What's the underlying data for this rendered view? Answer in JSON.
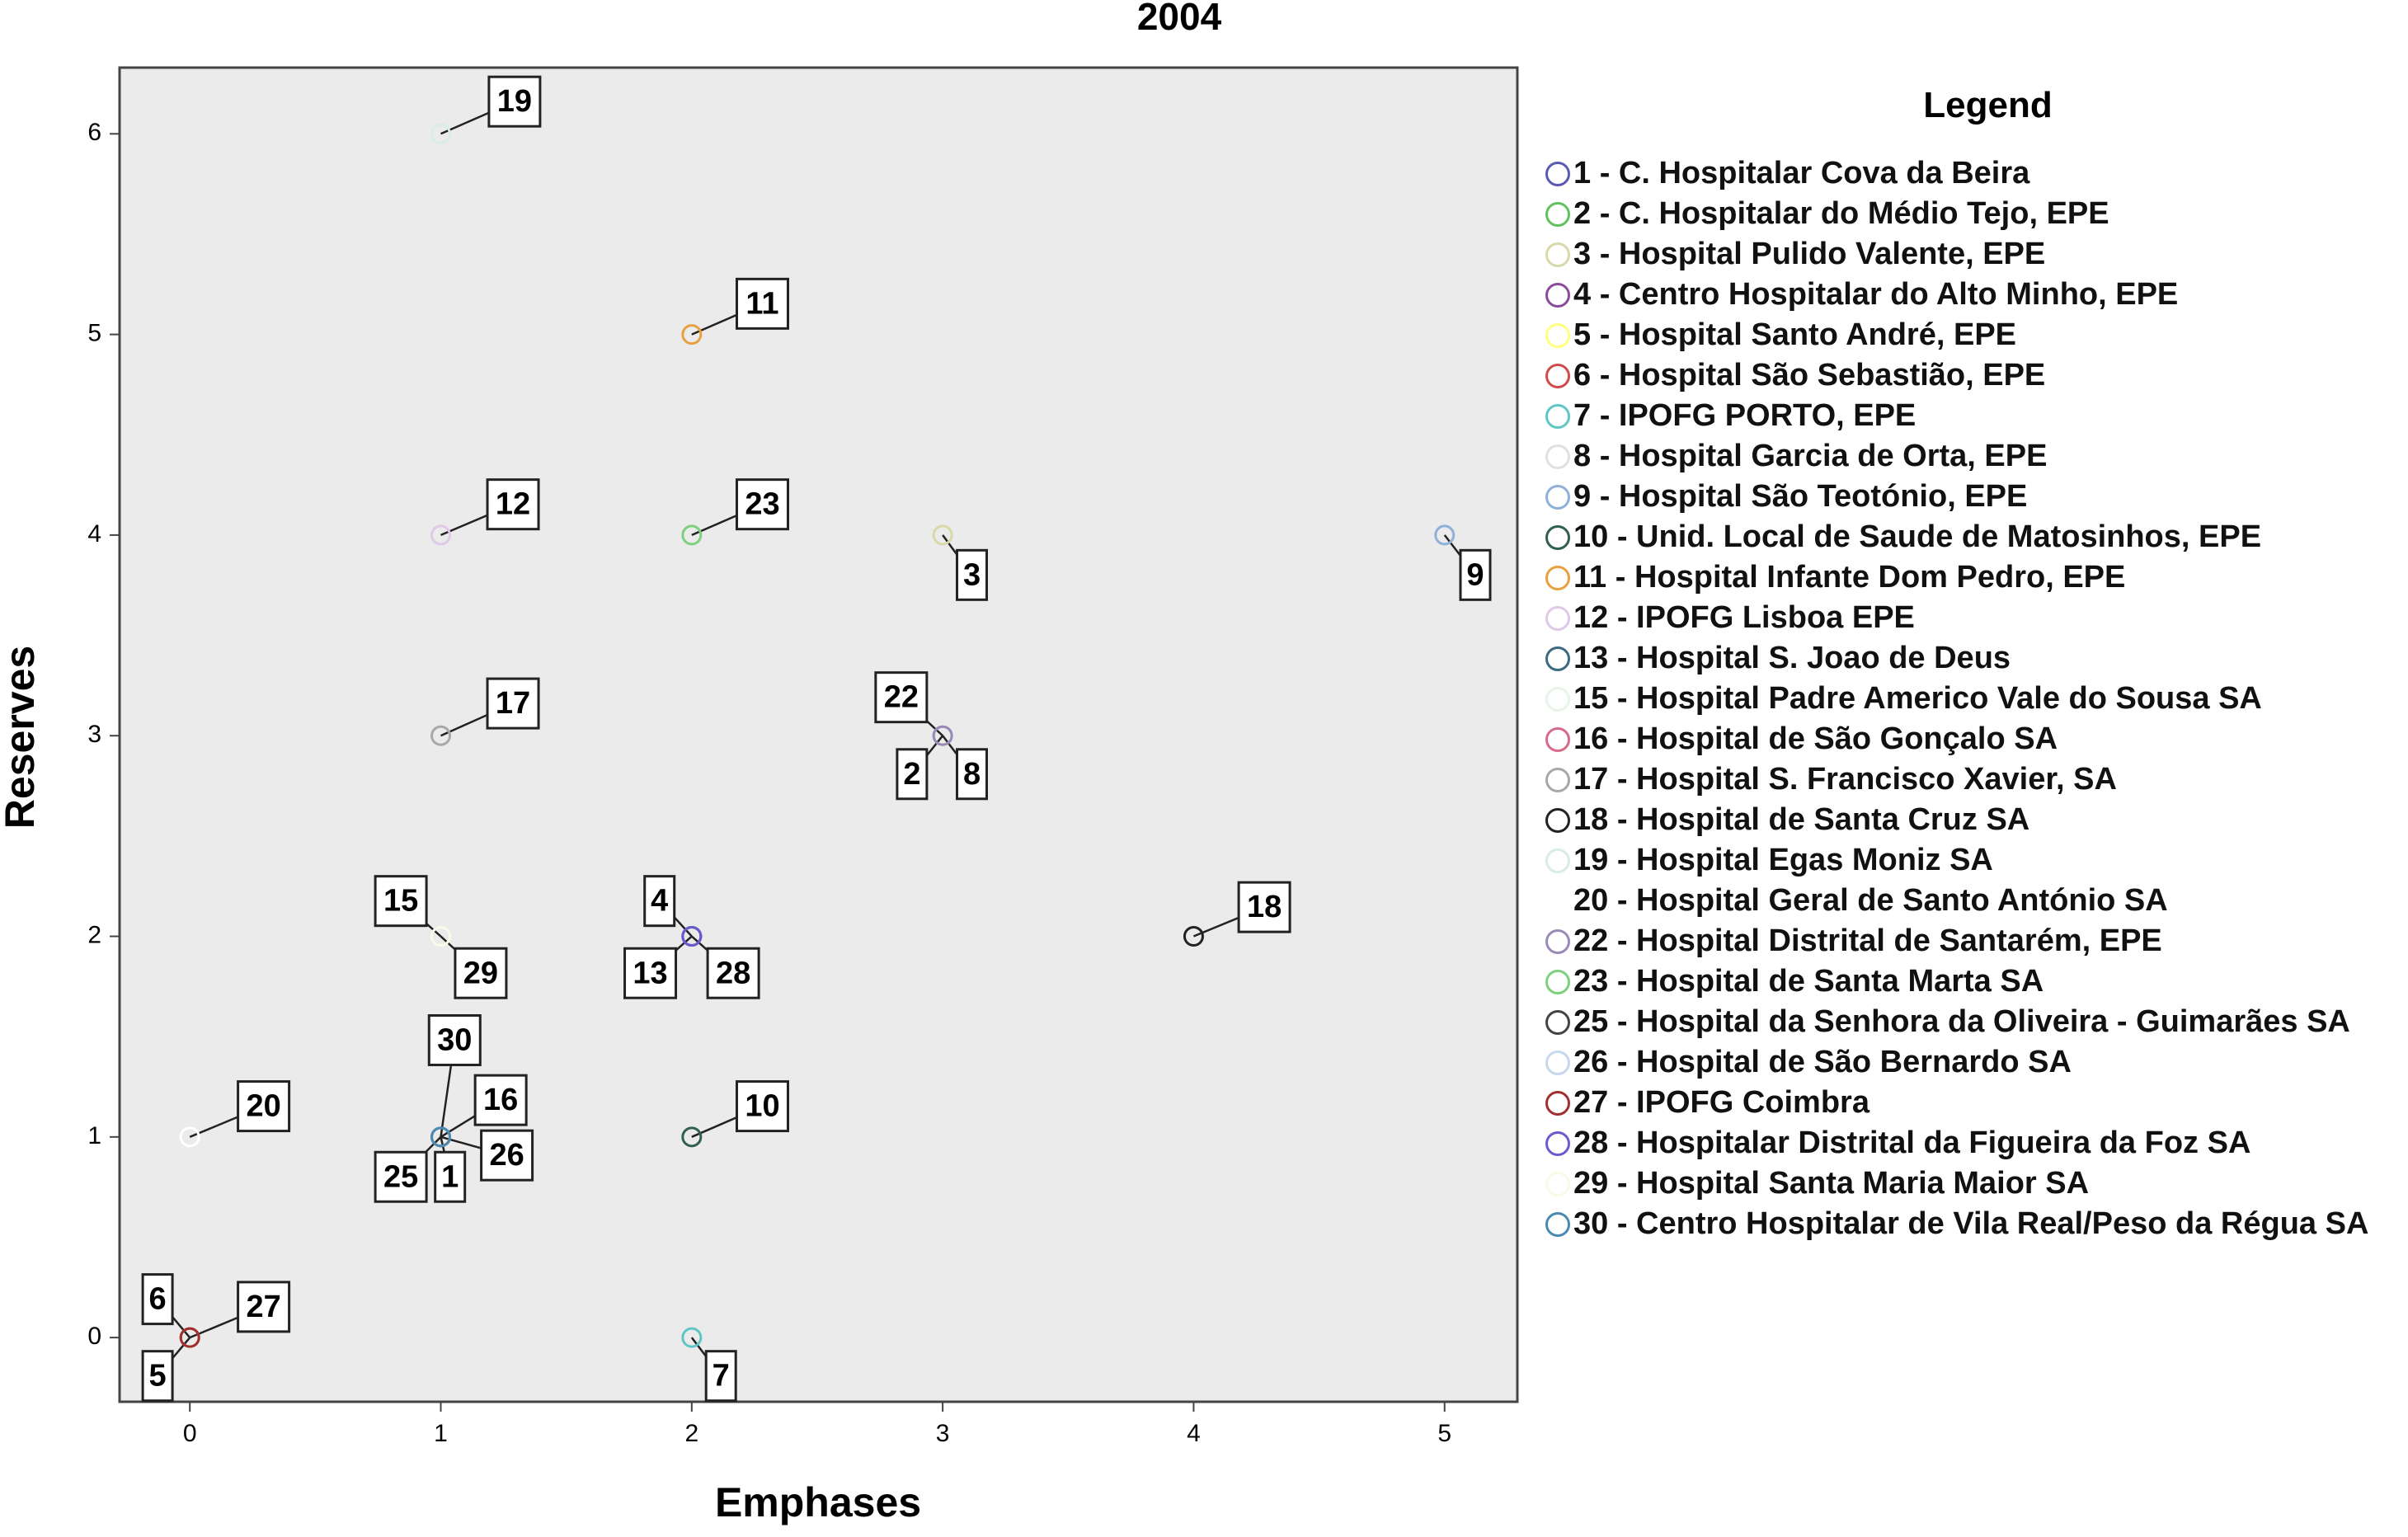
{
  "chart_data": {
    "type": "scatter",
    "title": "2004",
    "x_label": "Emphases",
    "y_label": "Reserves",
    "legend_title": "Legend",
    "xlim": [
      -0.28,
      5.29
    ],
    "ylim": [
      -0.32,
      6.33
    ],
    "xticks": [
      0,
      1,
      2,
      3,
      4,
      5
    ],
    "yticks": [
      0,
      1,
      2,
      3,
      4,
      5,
      6
    ],
    "series": [
      {
        "name": "1 - C. Hospitalar Cova da Beira",
        "label": "1",
        "color": "#5a5ab4",
        "x": [
          1
        ],
        "values": [
          1
        ]
      },
      {
        "name": "2 - C. Hospitalar do Médio Tejo, EPE",
        "label": "2",
        "color": "#5fc15f",
        "x": [
          3
        ],
        "values": [
          3
        ]
      },
      {
        "name": "3 - Hospital Pulido Valente, EPE",
        "label": "3",
        "color": "#d8d8a8",
        "x": [
          3
        ],
        "values": [
          4
        ]
      },
      {
        "name": "4 - Centro Hospitalar do Alto Minho, EPE",
        "label": "4",
        "color": "#8b4b9b",
        "x": [
          2
        ],
        "values": [
          2
        ]
      },
      {
        "name": "5 - Hospital Santo André, EPE",
        "label": "5",
        "color": "#ffff80",
        "x": [
          0
        ],
        "values": [
          0
        ]
      },
      {
        "name": "6 - Hospital São Sebastião, EPE",
        "label": "6",
        "color": "#d24b4b",
        "x": [
          0
        ],
        "values": [
          0
        ]
      },
      {
        "name": "7 - IPOFG PORTO, EPE",
        "label": "7",
        "color": "#5fc6c6",
        "x": [
          2
        ],
        "values": [
          0
        ]
      },
      {
        "name": "8 - Hospital Garcia  de Orta, EPE",
        "label": "8",
        "color": "#e0e0e0",
        "x": [
          3
        ],
        "values": [
          3
        ]
      },
      {
        "name": "9 - Hospital São Teotónio, EPE",
        "label": "9",
        "color": "#8fb0d8",
        "x": [
          5
        ],
        "values": [
          4
        ]
      },
      {
        "name": "10 - Unid. Local de Saude de Matosinhos, EPE",
        "label": "10",
        "color": "#2f5f4f",
        "x": [
          2
        ],
        "values": [
          1
        ]
      },
      {
        "name": "11 - Hospital Infante Dom Pedro, EPE",
        "label": "11",
        "color": "#e8a040",
        "x": [
          2
        ],
        "values": [
          5
        ]
      },
      {
        "name": "12 - IPOFG Lisboa EPE",
        "label": "12",
        "color": "#e0c8e8",
        "x": [
          1
        ],
        "values": [
          4
        ]
      },
      {
        "name": "13 - Hospital S. Joao de Deus",
        "label": "13",
        "color": "#3a6a80",
        "x": [
          2
        ],
        "values": [
          2
        ]
      },
      {
        "name": "15 - Hospital Padre Americo  Vale do Sousa SA",
        "label": "15",
        "color": "#e8f4e8",
        "x": [
          1
        ],
        "values": [
          2
        ]
      },
      {
        "name": "16 - Hospital de São Gonçalo SA",
        "label": "16",
        "color": "#d86a8a",
        "x": [
          1
        ],
        "values": [
          1
        ]
      },
      {
        "name": "17 - Hospital S. Francisco Xavier, SA",
        "label": "17",
        "color": "#a8a8a8",
        "x": [
          1
        ],
        "values": [
          3
        ]
      },
      {
        "name": "18 - Hospital de Santa Cruz SA",
        "label": "18",
        "color": "#222222",
        "x": [
          4
        ],
        "values": [
          2
        ]
      },
      {
        "name": "19 - Hospital Egas Moniz SA",
        "label": "19",
        "color": "#d8ece8",
        "x": [
          1
        ],
        "values": [
          6
        ]
      },
      {
        "name": "20 - Hospital Geral de Santo António SA",
        "label": "20",
        "color": "#ffffff",
        "x": [
          0
        ],
        "values": [
          1
        ]
      },
      {
        "name": "22 - Hospital Distrital de Santarém, EPE",
        "label": "22",
        "color": "#9a8ab8",
        "x": [
          3
        ],
        "values": [
          3
        ]
      },
      {
        "name": "23 - Hospital de Santa Marta SA",
        "label": "23",
        "color": "#7ed07e",
        "x": [
          2
        ],
        "values": [
          4
        ]
      },
      {
        "name": "25 - Hospital da Senhora da Oliveira - Guimarães SA",
        "label": "25",
        "color": "#444444",
        "x": [
          1
        ],
        "values": [
          1
        ]
      },
      {
        "name": "26 - Hospital de São Bernardo SA",
        "label": "26",
        "color": "#c8d8ec",
        "x": [
          1
        ],
        "values": [
          1
        ]
      },
      {
        "name": "27 - IPOFG Coimbra",
        "label": "27",
        "color": "#a03030",
        "x": [
          0
        ],
        "values": [
          0
        ]
      },
      {
        "name": "28 - Hospitalar Distrital da Figueira da Foz SA",
        "label": "28",
        "color": "#6a5ad0",
        "x": [
          2
        ],
        "values": [
          2
        ]
      },
      {
        "name": "29 - Hospital Santa Maria Maior SA",
        "label": "29",
        "color": "#fafae8",
        "x": [
          1
        ],
        "values": [
          2
        ]
      },
      {
        "name": "30 - Centro Hospitalar de Vila Real/Peso da Régua SA",
        "label": "30",
        "color": "#4a8ab0",
        "x": [
          1
        ],
        "values": [
          1
        ]
      }
    ]
  }
}
